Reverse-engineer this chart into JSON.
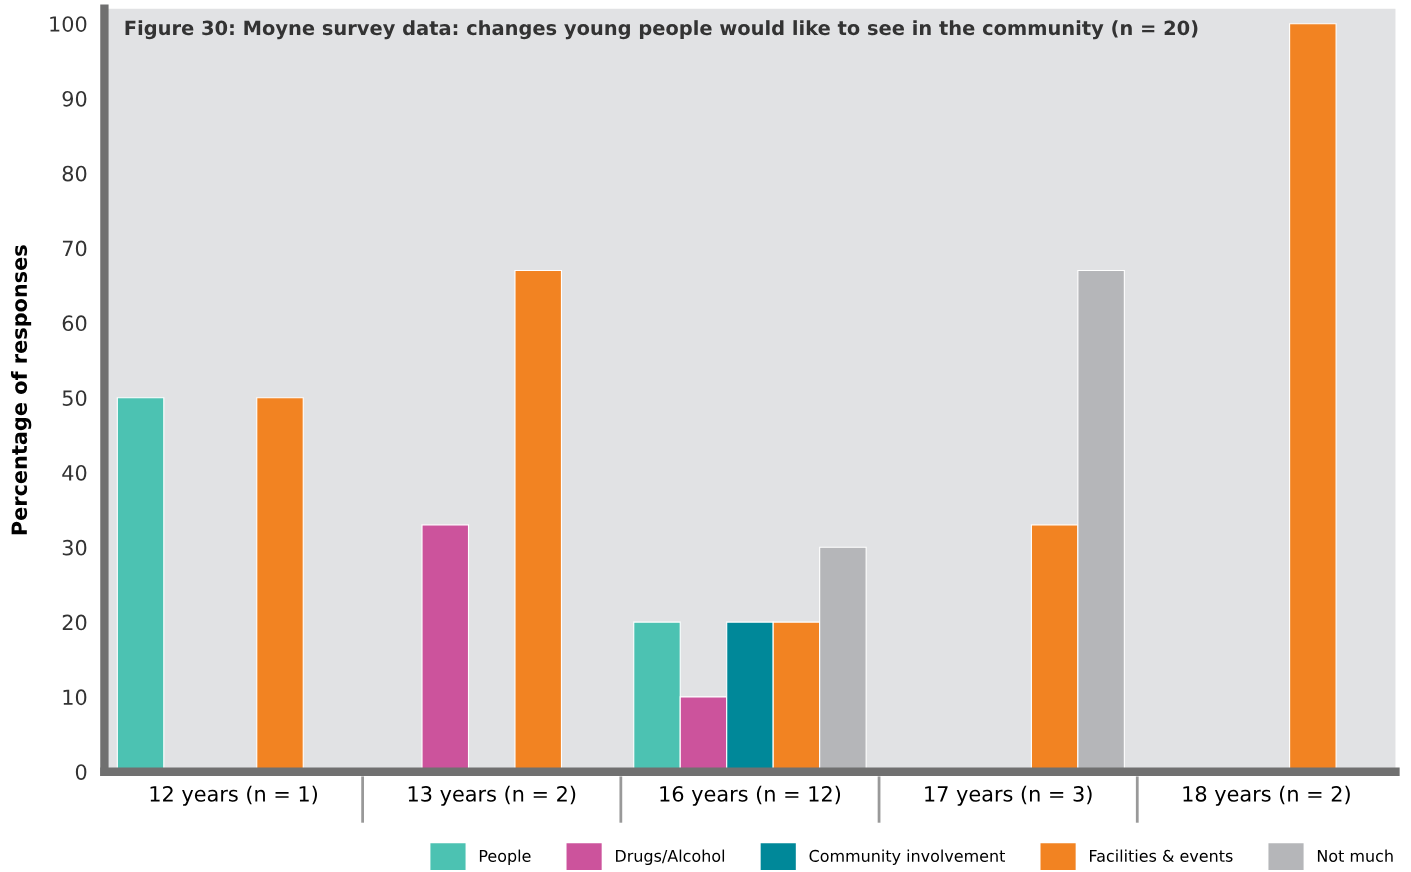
{
  "chart_data": {
    "type": "bar",
    "title": "Figure 30: Moyne survey data: changes young people would like to see in the community (n = 20)",
    "ylabel": "Percentage of responses",
    "categories": [
      "12 years (n = 1)",
      "13 years (n = 2)",
      "16 years (n = 12)",
      "17 years (n = 3)",
      "18 years (n = 2)"
    ],
    "series": [
      {
        "name": "People",
        "color": "#4cc2b2",
        "values": [
          50,
          null,
          20,
          null,
          null
        ]
      },
      {
        "name": "Drugs/Alcohol",
        "color": "#cc539c",
        "values": [
          null,
          33,
          10,
          null,
          null
        ]
      },
      {
        "name": "Community involvement",
        "color": "#008899",
        "values": [
          null,
          null,
          20,
          null,
          null
        ]
      },
      {
        "name": "Facilities & events",
        "color": "#f28322",
        "values": [
          50,
          67,
          20,
          33,
          100
        ]
      },
      {
        "name": "Not much",
        "color": "#b5b6b9",
        "values": [
          null,
          null,
          30,
          67,
          null
        ]
      }
    ],
    "ylim": [
      0,
      102
    ],
    "yticks": [
      0,
      10,
      20,
      30,
      40,
      50,
      60,
      70,
      80,
      90,
      100
    ],
    "grid": false,
    "legend": "bottom right"
  }
}
